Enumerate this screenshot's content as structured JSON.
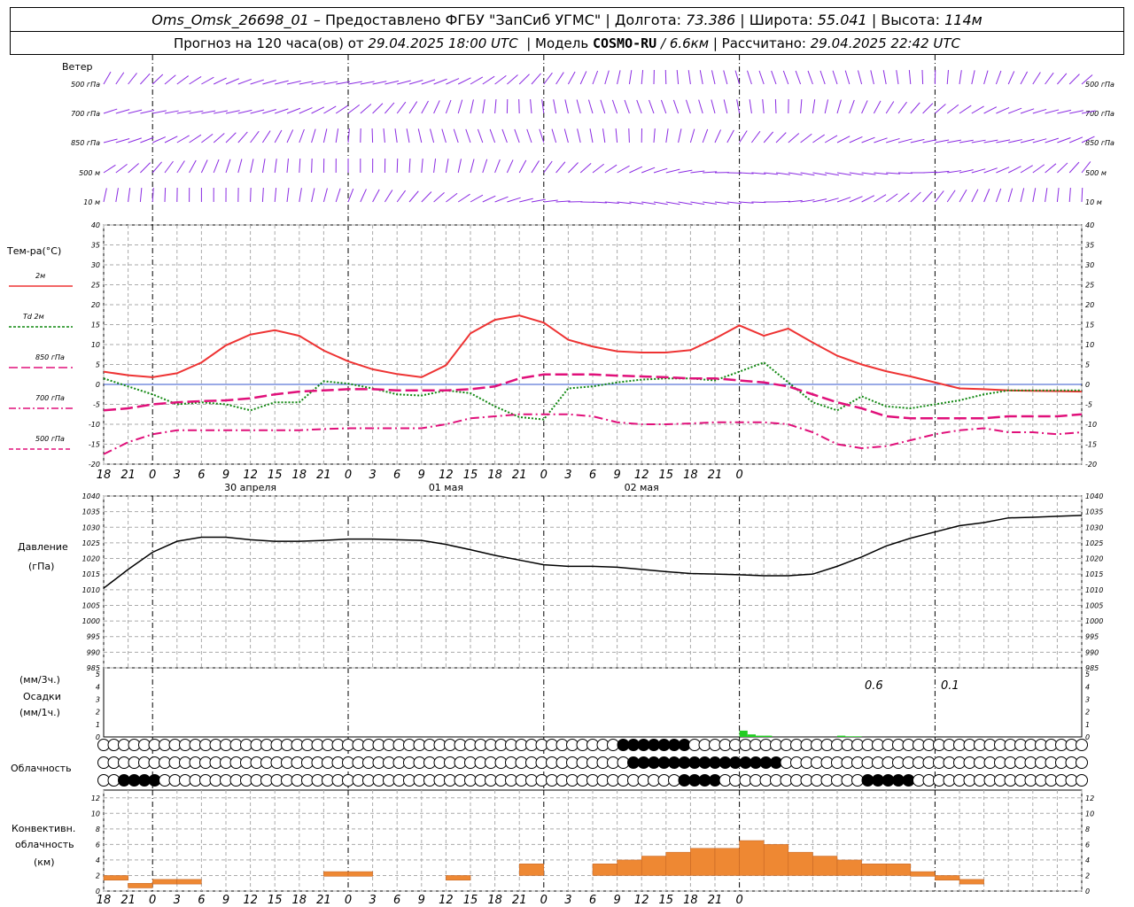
{
  "header": {
    "station": "Oms_Omsk_26698_01",
    "provided_by": "– Предоставлено ФГБУ \"ЗапСиб УГМС\"",
    "lon_label": "Долгота:",
    "lon_value": "73.386",
    "lat_label": "Широта:",
    "lat_value": "55.041",
    "alt_label": "Высота:",
    "alt_value": "114м",
    "forecast_label": "Прогноз на 120 часа(ов) от",
    "forecast_time": "29.04.2025 18:00 UTC",
    "model_label": "Модель",
    "model_name": "COSMO-RU",
    "model_res": "/ 6.6км",
    "calc_label": "Рассчитано:",
    "calc_time": "29.04.2025 22:42 UTC"
  },
  "panels": {
    "wind": {
      "title": "Ветер",
      "levels": [
        "500 гПа",
        "700 гПа",
        "850 гПа",
        "500 м",
        "10  м"
      ]
    },
    "temperature": {
      "title": "Тем-ра(°C)",
      "legend": [
        {
          "name": "2м",
          "color": "#ee3333",
          "dash": "solid"
        },
        {
          "name": "Td  2м",
          "color": "#118811",
          "dash": "dotted"
        },
        {
          "name": "850 гПа",
          "color": "#e0107a",
          "dash": "long-dash"
        },
        {
          "name": "700 гПа",
          "color": "#e0107a",
          "dash": "dash-dot"
        },
        {
          "name": "500 гПа",
          "color": "#e0107a",
          "dash": "dashed"
        }
      ],
      "y_ticks": [
        "40",
        "35",
        "30",
        "25",
        "20",
        "15",
        "10",
        "5",
        "0",
        "-5",
        "-10",
        "-15",
        "-20"
      ]
    },
    "pressure": {
      "title1": "Давление",
      "title2": "(гПа)",
      "y_ticks": [
        "1040",
        "1035",
        "1030",
        "1025",
        "1020",
        "1015",
        "1010",
        "1005",
        "1000",
        "995",
        "990",
        "985"
      ]
    },
    "precip": {
      "title1": "(мм/3ч.)",
      "title2": "Осадки",
      "title3": "(мм/1ч.)",
      "y_ticks": [
        "5",
        "4",
        "3",
        "2",
        "1",
        "0"
      ],
      "labels": [
        "0.6",
        "0.1"
      ]
    },
    "clouds": {
      "title": "Облачность"
    },
    "convective": {
      "title1": "Конвективн.",
      "title2": "облачность",
      "title3": "(км)",
      "y_ticks": [
        "12",
        "10",
        "8",
        "6",
        "4",
        "2",
        "0"
      ]
    }
  },
  "x_axis": {
    "hour_labels": [
      "18",
      "21",
      "0",
      "3",
      "6",
      "9",
      "12",
      "15",
      "18",
      "21",
      "0",
      "3",
      "6",
      "9",
      "12",
      "15",
      "18",
      "21",
      "0",
      "3",
      "6",
      "9",
      "12",
      "15",
      "18",
      "21",
      "0"
    ],
    "date_labels": [
      "30 апреля",
      "01 мая",
      "02 мая"
    ]
  },
  "colors": {
    "wind": "#8a2be2",
    "t2m": "#ee3333",
    "td": "#118811",
    "upper": "#e0107a",
    "pressure": "#000000",
    "precip": "#22cc22",
    "conv": "#ee8833",
    "grid": "#aaaaaa"
  },
  "chart_data": [
    {
      "type": "line",
      "title": "Тем-ра(°C)",
      "x_unit": "hours since 29.04.2025 18:00 UTC",
      "ylim": [
        -20,
        40
      ],
      "series": [
        {
          "name": "2м",
          "x": [
            0,
            3,
            6,
            9,
            12,
            15,
            18,
            21,
            24,
            27,
            30,
            33,
            36,
            39,
            42,
            45,
            48,
            51,
            54,
            57,
            60,
            63,
            66,
            69,
            72,
            75,
            78,
            81,
            84,
            87,
            90,
            93,
            96,
            99,
            102,
            105,
            108,
            111,
            114,
            117,
            120
          ],
          "values": [
            3.2,
            2.3,
            1.8,
            2.8,
            5.5,
            9.8,
            12.5,
            13.6,
            12.2,
            8.5,
            5.8,
            3.8,
            2.6,
            1.8,
            4.8,
            12.8,
            16.2,
            17.3,
            15.5,
            11.2,
            9.5,
            8.3,
            8.0,
            8.0,
            8.6,
            11.5,
            14.8,
            12.2,
            14.0,
            10.5,
            7.2,
            5.0,
            3.3,
            2.0,
            0.5,
            -1.0,
            -1.2,
            -1.5,
            -1.6,
            -1.7,
            -1.8
          ],
          "color": "#ee3333"
        },
        {
          "name": "Td  2м",
          "x": [
            0,
            3,
            6,
            9,
            12,
            15,
            18,
            21,
            24,
            27,
            30,
            33,
            36,
            39,
            42,
            45,
            48,
            51,
            54,
            57,
            60,
            63,
            66,
            69,
            72,
            75,
            78,
            81,
            84,
            87,
            90,
            93,
            96,
            99,
            102,
            105,
            108,
            111,
            114,
            117,
            120
          ],
          "values": [
            1.5,
            -0.5,
            -2.5,
            -5.0,
            -4.5,
            -5.0,
            -6.5,
            -4.5,
            -4.5,
            0.8,
            0.2,
            -1.0,
            -2.5,
            -2.8,
            -1.5,
            -2.2,
            -5.5,
            -8.2,
            -8.8,
            -1.0,
            -0.5,
            0.5,
            1.2,
            1.5,
            1.5,
            1.0,
            3.2,
            5.5,
            0.5,
            -4.5,
            -6.5,
            -3.0,
            -5.5,
            -6.0,
            -5.0,
            -4.0,
            -2.5,
            -1.5,
            -1.5,
            -1.5,
            -1.5
          ],
          "color": "#118811"
        },
        {
          "name": "850 гПа",
          "x": [
            0,
            3,
            6,
            9,
            12,
            15,
            18,
            21,
            24,
            27,
            30,
            33,
            36,
            39,
            42,
            45,
            48,
            51,
            54,
            57,
            60,
            63,
            66,
            69,
            72,
            75,
            78,
            81,
            84,
            87,
            90,
            93,
            96,
            99,
            102,
            105,
            108,
            111,
            114,
            117,
            120
          ],
          "values": [
            -6.5,
            -6.0,
            -5.0,
            -4.5,
            -4.2,
            -4.0,
            -3.5,
            -2.5,
            -1.8,
            -1.5,
            -1.2,
            -1.2,
            -1.5,
            -1.5,
            -1.5,
            -1.2,
            -0.5,
            1.5,
            2.5,
            2.5,
            2.5,
            2.2,
            2.0,
            1.8,
            1.5,
            1.5,
            1.0,
            0.5,
            -0.5,
            -2.5,
            -4.5,
            -6.0,
            -8.0,
            -8.5,
            -8.5,
            -8.5,
            -8.5,
            -8.0,
            -8.0,
            -8.0,
            -7.5
          ],
          "color": "#e0107a"
        },
        {
          "name": "700 гПа",
          "x": [
            0,
            3,
            6,
            9,
            12,
            15,
            18,
            21,
            24,
            27,
            30,
            33,
            36,
            39,
            42,
            45,
            48,
            51,
            54,
            57,
            60,
            63,
            66,
            69,
            72,
            75,
            78,
            81,
            84,
            87,
            90,
            93,
            96,
            99,
            102,
            105,
            108,
            111,
            114,
            117,
            120
          ],
          "values": [
            -17.5,
            -14.5,
            -12.5,
            -11.5,
            -11.5,
            -11.5,
            -11.5,
            -11.5,
            -11.5,
            -11.2,
            -11.0,
            -11.0,
            -11.0,
            -11.0,
            -10.0,
            -8.5,
            -8.0,
            -7.5,
            -7.5,
            -7.5,
            -8.0,
            -9.5,
            -10.0,
            -10.0,
            -9.8,
            -9.5,
            -9.5,
            -9.5,
            -10.0,
            -12.0,
            -15.0,
            -16.0,
            -15.5,
            -14.0,
            -12.5,
            -11.5,
            -11.0,
            -12.0,
            -12.0,
            -12.5,
            -12.0
          ],
          "color": "#e0107a"
        }
      ]
    },
    {
      "type": "line",
      "title": "Давление",
      "ylabel": "(гПа)",
      "ylim": [
        985,
        1040
      ],
      "series": [
        {
          "name": "Давление",
          "x": [
            0,
            3,
            6,
            9,
            12,
            15,
            18,
            21,
            24,
            27,
            30,
            33,
            36,
            39,
            42,
            45,
            48,
            51,
            54,
            57,
            60,
            63,
            66,
            69,
            72,
            75,
            78,
            81,
            84,
            87,
            90,
            93,
            96,
            99,
            102,
            105,
            108,
            111,
            114,
            117,
            120
          ],
          "values": [
            1010.5,
            1016.5,
            1022.0,
            1025.5,
            1026.8,
            1026.8,
            1026.0,
            1025.5,
            1025.5,
            1025.8,
            1026.2,
            1026.2,
            1026.0,
            1025.8,
            1024.5,
            1022.8,
            1021.0,
            1019.5,
            1018.0,
            1017.5,
            1017.5,
            1017.2,
            1016.5,
            1015.8,
            1015.2,
            1015.0,
            1014.8,
            1014.5,
            1014.5,
            1015.0,
            1017.5,
            1020.5,
            1024.0,
            1026.5,
            1028.5,
            1030.5,
            1031.5,
            1033.0,
            1033.2,
            1033.5,
            1033.8
          ],
          "color": "#000000"
        }
      ]
    },
    {
      "type": "bar",
      "title": "Осадки",
      "ylim": [
        0,
        5
      ],
      "series": [
        {
          "name": "Осадки",
          "x": [
            78,
            79,
            80,
            81,
            82,
            83,
            84,
            85,
            86,
            87,
            88,
            89,
            90,
            91,
            92,
            93
          ],
          "values": [
            0.5,
            0.2,
            0.1,
            0.1,
            0,
            0,
            0,
            0,
            0,
            0,
            0,
            0,
            0.1,
            0.05,
            0.05,
            0
          ],
          "color": "#22cc22"
        }
      ]
    },
    {
      "type": "bar",
      "title": "Конвективн. облачность",
      "ylabel": "(км)",
      "ylim": [
        0,
        13
      ],
      "series": [
        {
          "name": "Конвективн. облачность",
          "x": [
            0,
            3,
            6,
            9,
            27,
            30,
            42,
            51,
            60,
            63,
            66,
            69,
            72,
            75,
            78,
            81,
            84,
            87,
            90,
            93,
            96,
            99,
            102,
            105
          ],
          "values": [
            2.0,
            1.0,
            1.5,
            1.5,
            2.5,
            2.5,
            2.0,
            3.5,
            3.5,
            4.0,
            4.5,
            5.0,
            5.5,
            5.5,
            6.5,
            6.0,
            5.0,
            4.5,
            4.0,
            3.5,
            3.5,
            2.5,
            2.0,
            1.5
          ],
          "color": "#ee8833"
        }
      ]
    }
  ]
}
